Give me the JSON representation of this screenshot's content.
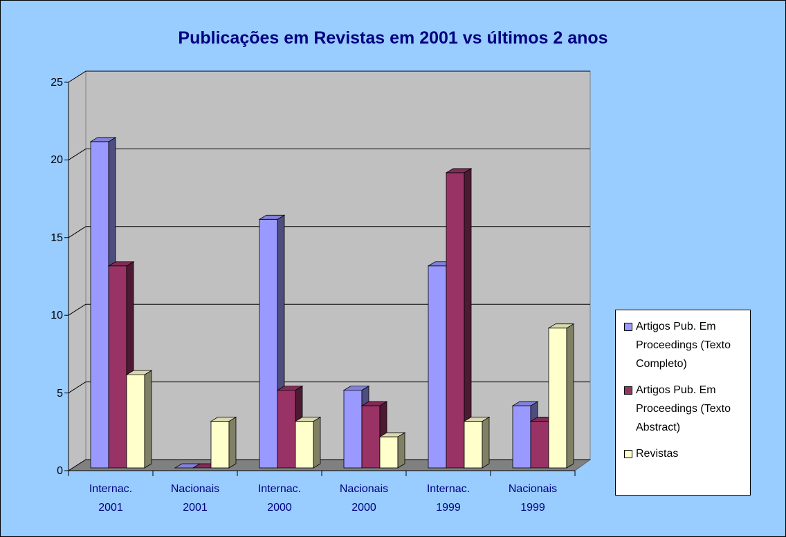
{
  "chart_data": {
    "type": "bar3d",
    "title": "Publicações em Revistas em 2001 vs últimos 2 anos",
    "categories": [
      "Internac. 2001",
      "Nacionais 2001",
      "Internac. 2000",
      "Nacionais 2000",
      "Internac. 1999",
      "Nacionais 1999"
    ],
    "series": [
      {
        "name": "Artigos Pub. Em Proceedings (Texto Completo)",
        "color": "#9999ff",
        "values": [
          21,
          0,
          16,
          5,
          13,
          4
        ]
      },
      {
        "name": "Artigos Pub. Em Proceedings (Texto Abstract)",
        "color": "#993366",
        "values": [
          13,
          0,
          5,
          4,
          19,
          3
        ]
      },
      {
        "name": "Revistas",
        "color": "#ffffcc",
        "values": [
          6,
          3,
          3,
          2,
          3,
          9
        ]
      }
    ],
    "ylim": [
      0,
      25
    ],
    "yticks": [
      0,
      5,
      10,
      15,
      20,
      25
    ],
    "grid": true,
    "legend": "right"
  }
}
